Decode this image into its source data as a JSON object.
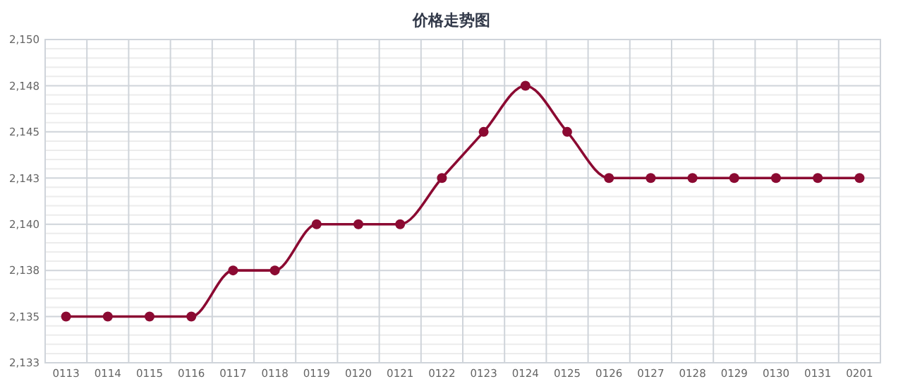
{
  "chart_data": {
    "type": "line",
    "title": "价格走势图",
    "categories": [
      "0113",
      "0114",
      "0115",
      "0116",
      "0117",
      "0118",
      "0119",
      "0120",
      "0121",
      "0122",
      "0123",
      "0124",
      "0125",
      "0126",
      "0127",
      "0128",
      "0129",
      "0130",
      "0131",
      "0201"
    ],
    "series": [
      {
        "color": "#8b0a32",
        "values": [
          2135,
          2135,
          2135,
          2135,
          2137.5,
          2137.5,
          2140,
          2140,
          2140,
          2142.5,
          2145,
          2147.5,
          2145,
          2142.5,
          2142.5,
          2142.5,
          2142.5,
          2142.5,
          2142.5,
          2142.5
        ]
      }
    ],
    "ylim": [
      2132.5,
      2150
    ],
    "yticks": [
      {
        "value": 2132.5,
        "label": "2,133"
      },
      {
        "value": 2135,
        "label": "2,135"
      },
      {
        "value": 2137.5,
        "label": "2,138"
      },
      {
        "value": 2140,
        "label": "2,140"
      },
      {
        "value": 2142.5,
        "label": "2,143"
      },
      {
        "value": 2145,
        "label": "2,145"
      },
      {
        "value": 2147.5,
        "label": "2,148"
      },
      {
        "value": 2150,
        "label": "2,150"
      }
    ],
    "grid": true,
    "marker": "circle",
    "line_style": "solid"
  }
}
